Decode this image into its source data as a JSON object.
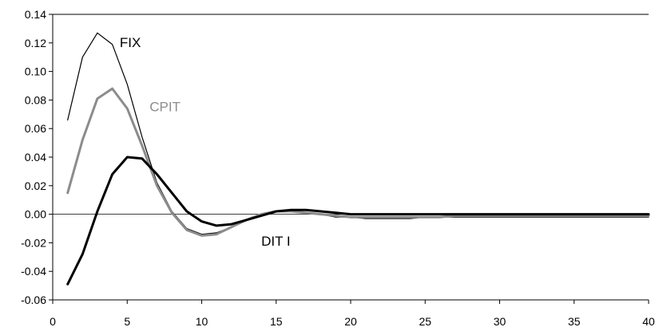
{
  "chart_data": {
    "type": "line",
    "xlim": [
      0,
      40
    ],
    "ylim": [
      -0.06,
      0.14
    ],
    "xticks": [
      0,
      5,
      10,
      15,
      20,
      25,
      30,
      35,
      40
    ],
    "yticks": [
      -0.06,
      -0.04,
      -0.02,
      0.0,
      0.02,
      0.04,
      0.06,
      0.08,
      0.1,
      0.12,
      0.14
    ],
    "ytick_labels": [
      "-0.06",
      "-0.04",
      "-0.02",
      "0.00",
      "0.02",
      "0.04",
      "0.06",
      "0.08",
      "0.10",
      "0.12",
      "0.14"
    ],
    "xtick_labels": [
      "0",
      "5",
      "10",
      "15",
      "20",
      "25",
      "30",
      "35",
      "40"
    ],
    "grid": false,
    "zero_line": true,
    "series": [
      {
        "name": "FIX",
        "color": "#000000",
        "width": "thin",
        "x": [
          1,
          2,
          3,
          4,
          5,
          6,
          7,
          8,
          9,
          10,
          11,
          12,
          13,
          14,
          15,
          16,
          17,
          18,
          19,
          20,
          21,
          22,
          23,
          24,
          25,
          26,
          27,
          28,
          29,
          30,
          31,
          32,
          33,
          34,
          35,
          36,
          37,
          38,
          39,
          40
        ],
        "values": [
          0.066,
          0.11,
          0.127,
          0.119,
          0.091,
          0.054,
          0.022,
          0.002,
          -0.01,
          -0.014,
          -0.013,
          -0.009,
          -0.004,
          0.0,
          0.002,
          0.002,
          0.001,
          0.0,
          -0.002,
          -0.002,
          -0.003,
          -0.003,
          -0.003,
          -0.003,
          -0.002,
          -0.002,
          -0.002,
          -0.002,
          -0.002,
          -0.002,
          -0.002,
          -0.002,
          -0.002,
          -0.002,
          -0.002,
          -0.002,
          -0.002,
          -0.002,
          -0.002,
          -0.002
        ]
      },
      {
        "name": "CPIT",
        "color": "#8c8c8c",
        "width": "medium",
        "x": [
          1,
          2,
          3,
          4,
          5,
          6,
          7,
          8,
          9,
          10,
          11,
          12,
          13,
          14,
          15,
          16,
          17,
          18,
          19,
          20,
          21,
          22,
          23,
          24,
          25,
          26,
          27,
          28,
          29,
          30,
          31,
          32,
          33,
          34,
          35,
          36,
          37,
          38,
          39,
          40
        ],
        "values": [
          0.015,
          0.052,
          0.081,
          0.088,
          0.074,
          0.048,
          0.02,
          0.001,
          -0.011,
          -0.015,
          -0.014,
          -0.009,
          -0.004,
          0.0,
          0.002,
          0.002,
          0.001,
          0.0,
          -0.001,
          -0.002,
          -0.002,
          -0.002,
          -0.002,
          -0.002,
          -0.002,
          -0.002,
          -0.001,
          -0.001,
          -0.001,
          -0.001,
          -0.001,
          -0.001,
          -0.001,
          -0.001,
          -0.001,
          -0.001,
          -0.001,
          -0.001,
          -0.001,
          -0.001
        ]
      },
      {
        "name": "DIT I",
        "color": "#000000",
        "width": "thick",
        "x": [
          1,
          2,
          3,
          4,
          5,
          6,
          7,
          8,
          9,
          10,
          11,
          12,
          13,
          14,
          15,
          16,
          17,
          18,
          19,
          20,
          21,
          22,
          23,
          24,
          25,
          26,
          27,
          28,
          29,
          30,
          31,
          32,
          33,
          34,
          35,
          36,
          37,
          38,
          39,
          40
        ],
        "values": [
          -0.049,
          -0.028,
          0.002,
          0.028,
          0.04,
          0.039,
          0.028,
          0.015,
          0.002,
          -0.005,
          -0.008,
          -0.007,
          -0.004,
          -0.001,
          0.002,
          0.003,
          0.003,
          0.002,
          0.001,
          0.0,
          0.0,
          0.0,
          0.0,
          0.0,
          0.0,
          0.0,
          0.0,
          0.0,
          0.0,
          0.0,
          0.0,
          0.0,
          0.0,
          0.0,
          0.0,
          0.0,
          0.0,
          0.0,
          0.0,
          0.0
        ]
      }
    ],
    "annotations": [
      {
        "text": "FIX",
        "series": "FIX",
        "x": 4.5,
        "y": 0.117
      },
      {
        "text": "CPIT",
        "series": "CPIT",
        "x": 6.5,
        "y": 0.072
      },
      {
        "text": "DIT I",
        "series": "DIT I",
        "x": 14.0,
        "y": -0.022
      }
    ]
  }
}
